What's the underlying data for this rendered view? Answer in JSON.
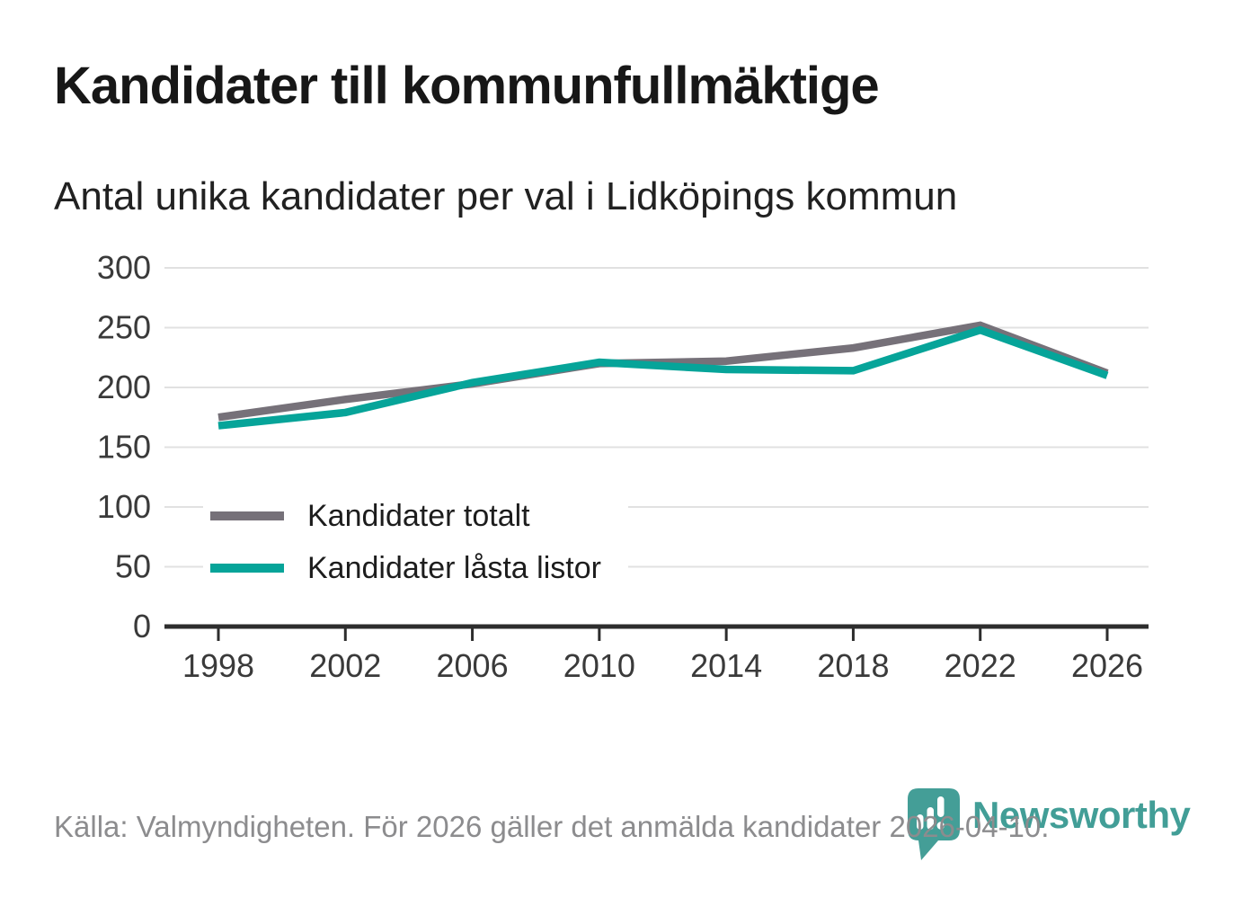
{
  "title": "Kandidater till kommunfullmäktige",
  "subtitle": "Antal unika kandidater per val i Lidköpings kommun",
  "footer": {
    "source_text": "Källa: Valmyndigheten. För 2026 gäller det anmälda kandidater 2026-04-10."
  },
  "branding": {
    "wordmark": "Newsworthy",
    "logo_icon": "newsworthy-pin-barchart-icon",
    "logo_color": "#429e97"
  },
  "colors": {
    "background": "#ffffff",
    "title_text": "#171717",
    "axis_text": "#3a3a3a",
    "gridline": "#e1e1e1",
    "axis_line": "#2d2d2d",
    "series_total": "#767179",
    "series_locked": "#06a499",
    "footer_text": "#8c8c8e"
  },
  "chart_data": {
    "type": "line",
    "title": "Kandidater till kommunfullmäktige",
    "subtitle": "Antal unika kandidater per val i Lidköpings kommun",
    "categories": [
      "1998",
      "2002",
      "2006",
      "2010",
      "2014",
      "2018",
      "2022",
      "2026"
    ],
    "series": [
      {
        "name": "Kandidater totalt",
        "color": "#767179",
        "values": [
          175,
          190,
          203,
          220,
          222,
          233,
          252,
          212
        ]
      },
      {
        "name": "Kandidater låsta listor",
        "color": "#06a499",
        "values": [
          168,
          179,
          204,
          221,
          215,
          214,
          248,
          210
        ]
      }
    ],
    "xlabel": "",
    "ylabel": "",
    "ylim": [
      0,
      300
    ],
    "yticks": [
      0,
      50,
      100,
      150,
      200,
      250,
      300
    ],
    "grid": true,
    "legend_position": "inside-bottom-left"
  }
}
